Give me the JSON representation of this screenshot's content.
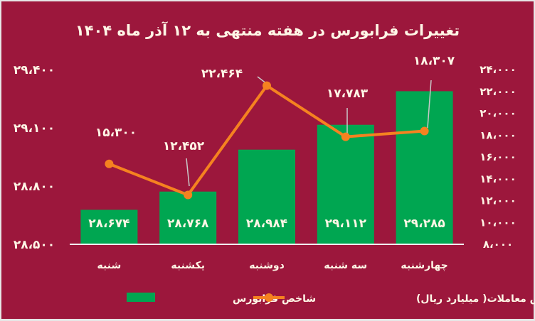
{
  "chart_data": {
    "type": "bar+line",
    "title": "تغییرات فرابورس در هفته منتهی به ۱۲ آذر ماه ۱۴۰۴",
    "categories": [
      "شنبه",
      "یکشنبه",
      "دوشنبه",
      "سه شنبه",
      "چهارشنبه"
    ],
    "series": [
      {
        "name": "شاخص فرابورس",
        "type": "bar",
        "axis": "left",
        "color": "#00a651",
        "values": [
          28674,
          28768,
          28984,
          29112,
          29285
        ],
        "labels": [
          "۲۸،۶۷۴",
          "۲۸،۷۶۸",
          "۲۸،۹۸۴",
          "۲۹،۱۱۲",
          "۲۹،۲۸۵"
        ]
      },
      {
        "name": "ارزش معاملات( میلیارد ریال)",
        "type": "line",
        "axis": "right",
        "color": "#f58220",
        "values": [
          15300,
          12452,
          22464,
          17783,
          18307
        ],
        "labels": [
          "۱۵،۳۰۰",
          "۱۲،۴۵۲",
          "۲۲،۴۶۴",
          "۱۷،۷۸۳",
          "۱۸،۳۰۷"
        ]
      }
    ],
    "left_axis": {
      "ylim": [
        28500,
        29400
      ],
      "ticks": [
        28500,
        28800,
        29100,
        29400
      ],
      "tick_labels": [
        "۲۸،۵۰۰",
        "۲۸،۸۰۰",
        "۲۹،۱۰۰",
        "۲۹،۴۰۰"
      ]
    },
    "right_axis": {
      "ylim": [
        8000,
        24000
      ],
      "ticks": [
        8000,
        10000,
        12000,
        14000,
        16000,
        18000,
        20000,
        22000,
        24000
      ],
      "tick_labels": [
        "۸،۰۰۰",
        "۱۰،۰۰۰",
        "۱۲،۰۰۰",
        "۱۴،۰۰۰",
        "۱۶،۰۰۰",
        "۱۸،۰۰۰",
        "۲۰،۰۰۰",
        "۲۲،۰۰۰",
        "۲۴،۰۰۰"
      ]
    },
    "grid": false,
    "legend": "bottom",
    "background": "#9c173c"
  }
}
